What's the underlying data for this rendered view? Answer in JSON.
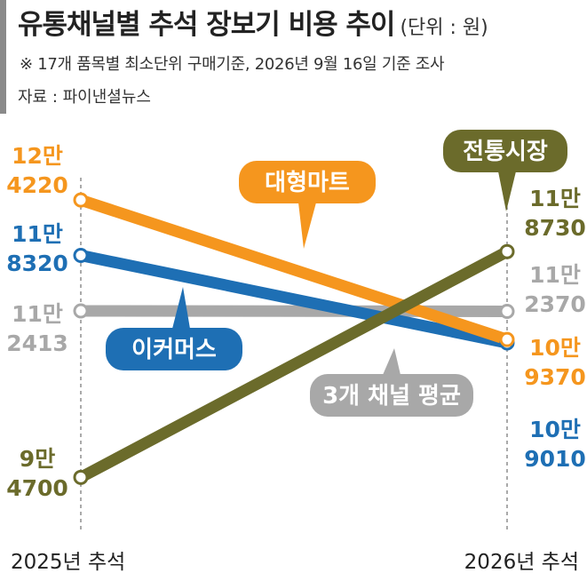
{
  "header": {
    "title": "유통채널별 추석 장보기 비용 추이",
    "unit": "(단위 : 원)",
    "note": "※ 17개 품목별 최소단위 구매기준, 2026년 9월 16일 기준 조사",
    "source": "자료 : 파이낸셜뉴스"
  },
  "chart_data": {
    "type": "line",
    "x": [
      "2025년 추석",
      "2026년 추석"
    ],
    "series": [
      {
        "name": "대형마트",
        "values": [
          124220,
          109370
        ],
        "labels": [
          [
            "12만",
            "4220"
          ],
          [
            "10만",
            "9370"
          ]
        ],
        "color": "#f5961e"
      },
      {
        "name": "이커머스",
        "values": [
          118320,
          109010
        ],
        "labels": [
          [
            "11만",
            "8320"
          ],
          [
            "10만",
            "9010"
          ]
        ],
        "color": "#1e6fb4"
      },
      {
        "name": "3개 채널 평균",
        "values": [
          112413,
          112370
        ],
        "labels": [
          [
            "11만",
            "2413"
          ],
          [
            "11만",
            "2370"
          ]
        ],
        "color": "#a8a8a8"
      },
      {
        "name": "전통시장",
        "values": [
          94700,
          118730
        ],
        "labels": [
          [
            "9만",
            "4700"
          ],
          [
            "11만",
            "8730"
          ]
        ],
        "color": "#6b6b2b"
      }
    ],
    "ylabel": "",
    "xlabel": "",
    "grid": false
  }
}
